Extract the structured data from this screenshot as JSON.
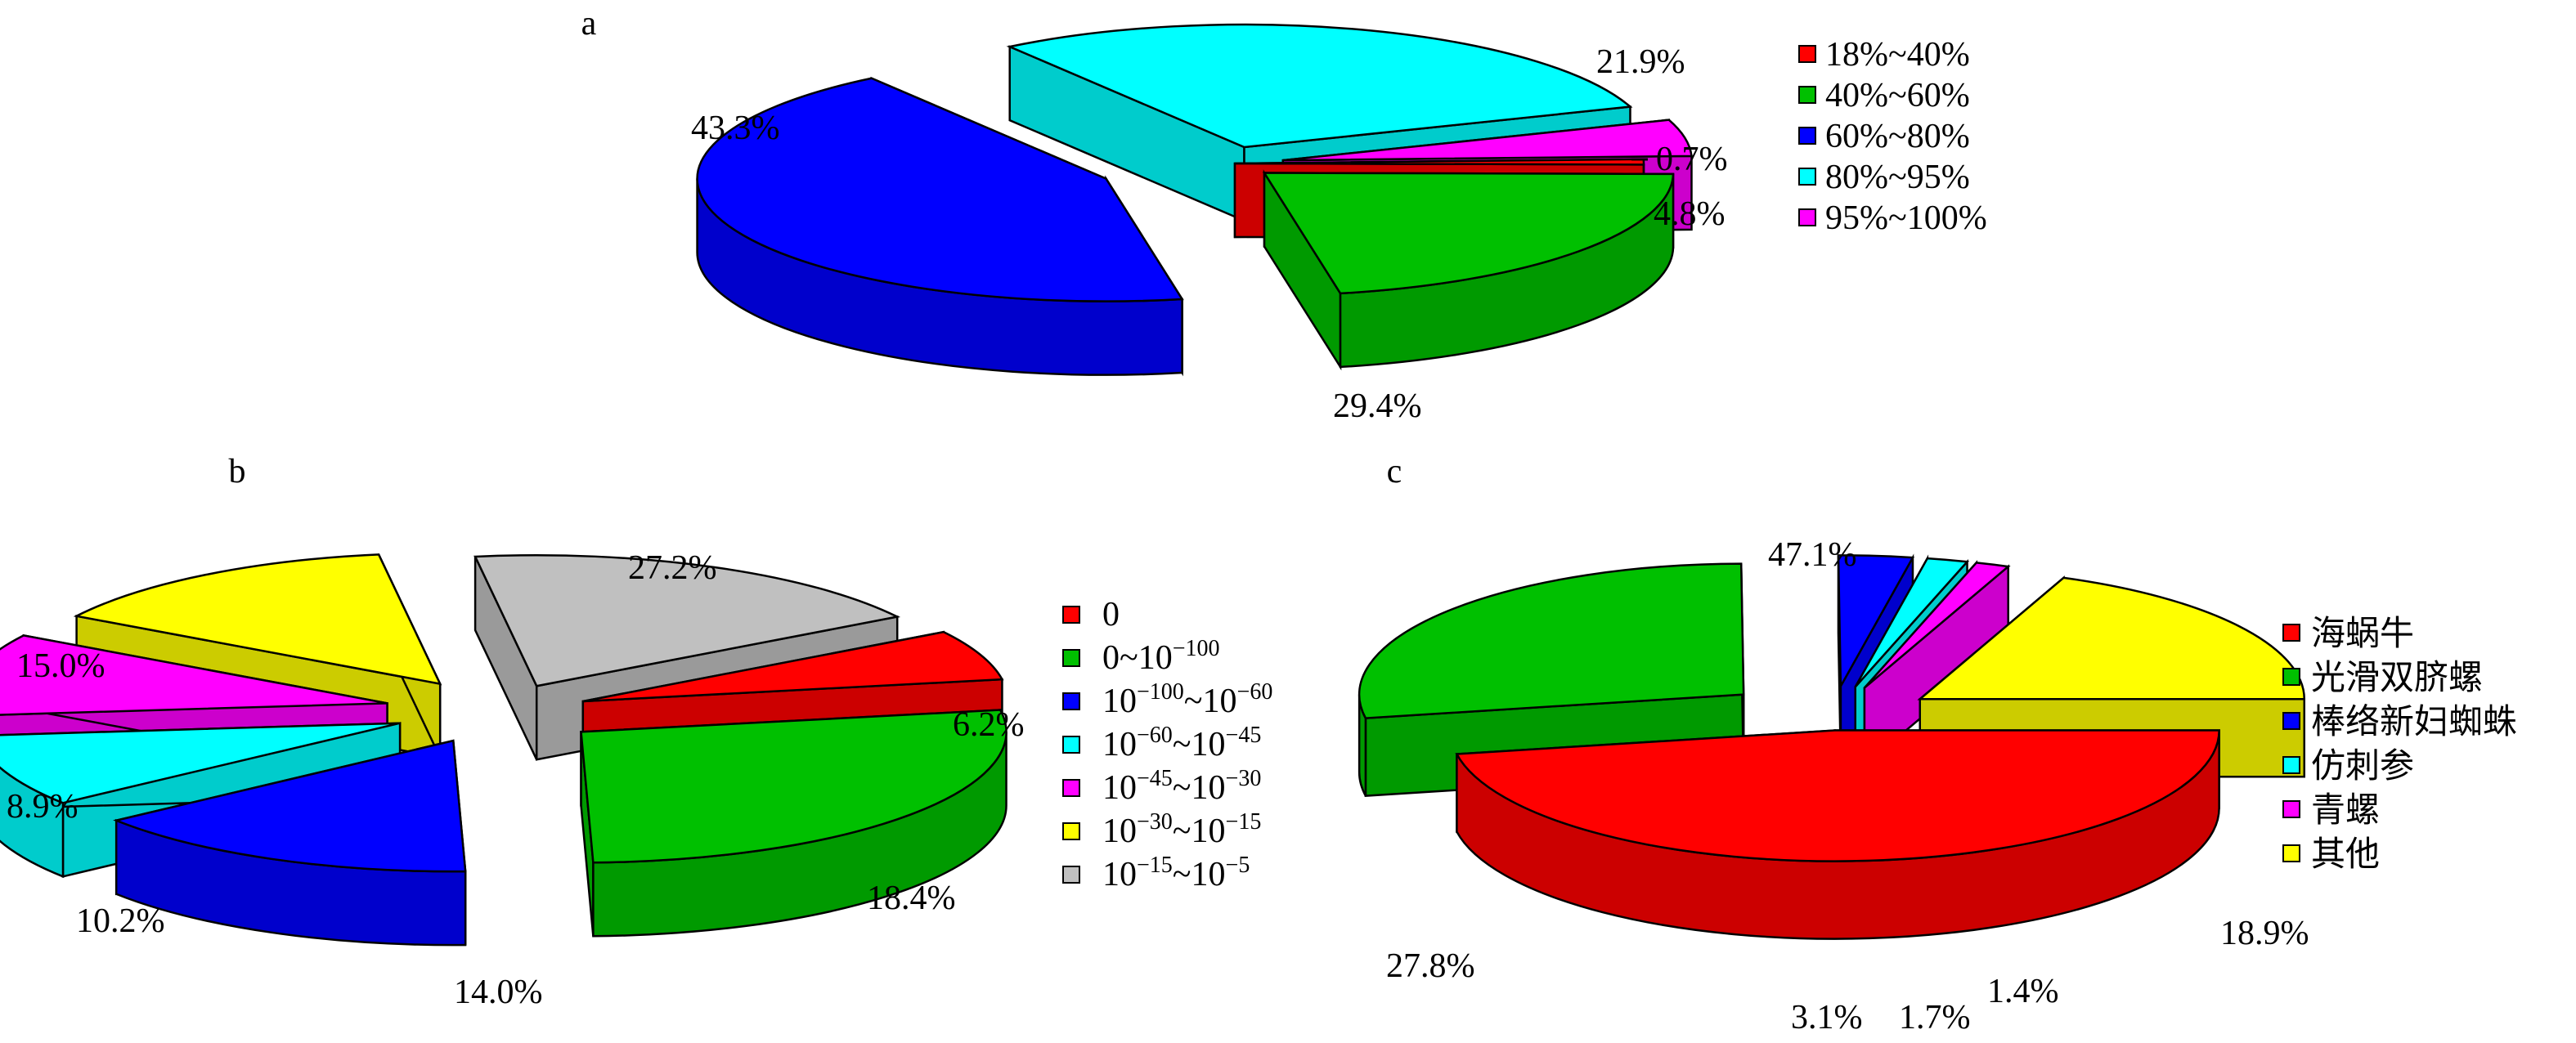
{
  "chart_data": [
    {
      "type": "pie",
      "panel": "a",
      "legend": [
        "18%~40%",
        "40%~60%",
        "60%~80%",
        "80%~95%",
        "95%~100%"
      ],
      "values": [
        0.7,
        21.9,
        43.3,
        29.4,
        4.8
      ],
      "labels": [
        "0.7%",
        "21.9%",
        "43.3%",
        "29.4%",
        "4.8%"
      ],
      "colors": [
        "#ff0000",
        "#00c000",
        "#0000ff",
        "#00ffff",
        "#ff00ff"
      ],
      "legend_position": "right"
    },
    {
      "type": "pie",
      "panel": "b",
      "legend": [
        {
          "base": "0",
          "exp": "",
          "tail_base": "",
          "tail_exp": ""
        },
        {
          "base": "0~10",
          "exp": "−100",
          "tail_base": "",
          "tail_exp": ""
        },
        {
          "base": "10",
          "exp": "−100",
          "tail_base": "~10",
          "tail_exp": "−60"
        },
        {
          "base": "10",
          "exp": "−60",
          "tail_base": "~10",
          "tail_exp": "−45"
        },
        {
          "base": "10",
          "exp": "−45",
          "tail_base": "~10",
          "tail_exp": "−30"
        },
        {
          "base": "10",
          "exp": "−30",
          "tail_base": "~10",
          "tail_exp": "−15"
        },
        {
          "base": "10",
          "exp": "−15",
          "tail_base": "~10",
          "tail_exp": "−5"
        }
      ],
      "values": [
        6.2,
        27.2,
        15.0,
        8.9,
        10.2,
        14.0,
        18.4
      ],
      "labels": [
        "6.2%",
        "27.2%",
        "15.0%",
        "8.9%",
        "10.2%",
        "14.0%",
        "18.4%"
      ],
      "colors": [
        "#ff0000",
        "#00c000",
        "#0000ff",
        "#00ffff",
        "#ff00ff",
        "#ffff00",
        "#c0c0c0"
      ],
      "legend_position": "right"
    },
    {
      "type": "pie",
      "panel": "c",
      "legend": [
        "海蜗牛",
        "光滑双脐螺",
        "棒络新妇蜘蛛",
        "仿刺参",
        "青螺",
        "其他"
      ],
      "values": [
        47.1,
        27.8,
        3.1,
        1.7,
        1.4,
        18.9
      ],
      "labels": [
        "47.1%",
        "27.8%",
        "3.1%",
        "1.7%",
        "1.4%",
        "18.9%"
      ],
      "colors": [
        "#ff0000",
        "#00c000",
        "#0000ff",
        "#00ffff",
        "#ff00ff",
        "#ffff00"
      ],
      "legend_position": "right"
    }
  ]
}
